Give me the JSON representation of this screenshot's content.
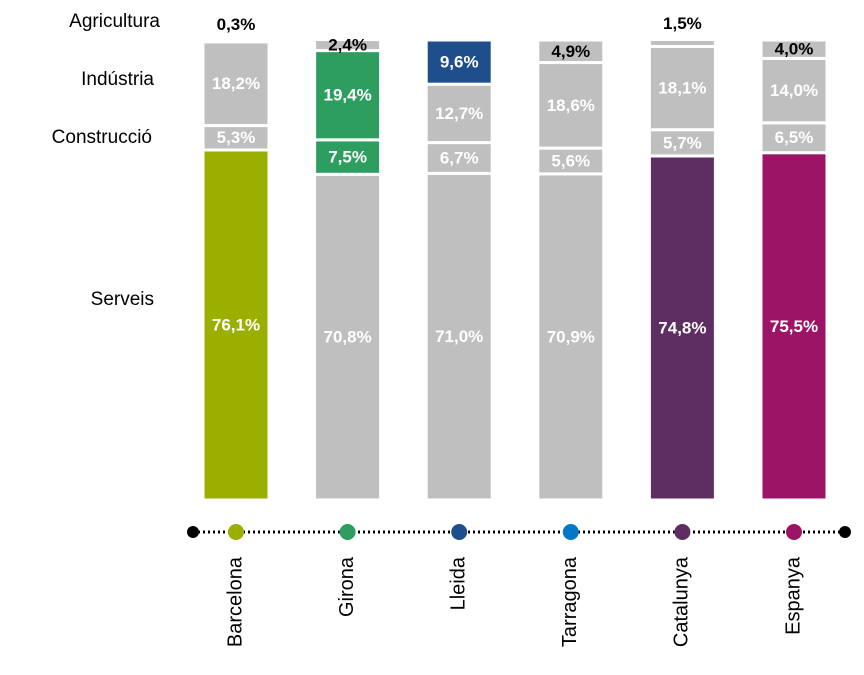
{
  "chart_data": {
    "type": "stacked_bar",
    "categories": [
      "Barcelona",
      "Girona",
      "Lleida",
      "Tarragona",
      "Catalunya",
      "Espanya"
    ],
    "category_colors": [
      "#9aaf00",
      "#2e9e60",
      "#1f4e8c",
      "#0077c8",
      "#5e2d62",
      "#9b1466"
    ],
    "ylim": [
      0,
      100
    ],
    "series": [
      {
        "name": "Serveis",
        "values": [
          76.1,
          70.8,
          71.0,
          70.9,
          74.8,
          75.5
        ],
        "value_labels": [
          "76,1%",
          "70,8%",
          "71,0%",
          "70,9%",
          "74,8%",
          "75,5%"
        ],
        "colors": [
          "#9aaf00",
          "#bfbfbf",
          "#bfbfbf",
          "#bfbfbf",
          "#5e2d62",
          "#9b1466"
        ]
      },
      {
        "name": "Construcció",
        "values": [
          5.3,
          7.5,
          6.7,
          5.6,
          5.7,
          6.5
        ],
        "value_labels": [
          "5,3%",
          "7,5%",
          "6,7%",
          "5,6%",
          "5,7%",
          "6,5%"
        ],
        "colors": [
          "#bfbfbf",
          "#2e9e60",
          "#bfbfbf",
          "#bfbfbf",
          "#bfbfbf",
          "#bfbfbf"
        ]
      },
      {
        "name": "Indústria",
        "values": [
          18.2,
          19.4,
          12.7,
          18.6,
          18.1,
          14.0
        ],
        "value_labels": [
          "18,2%",
          "19,4%",
          "12,7%",
          "18,6%",
          "18,1%",
          "14,0%"
        ],
        "colors": [
          "#bfbfbf",
          "#2e9e60",
          "#bfbfbf",
          "#bfbfbf",
          "#bfbfbf",
          "#bfbfbf"
        ]
      },
      {
        "name": "Agricultura",
        "values": [
          0.3,
          2.4,
          9.6,
          4.9,
          1.5,
          4.0
        ],
        "value_labels": [
          "0,3%",
          "2,4%",
          "9,6%",
          "4,9%",
          "1,5%",
          "4,0%"
        ],
        "colors": [
          "#bfbfbf",
          "#bfbfbf",
          "#1f4e8c",
          "#bfbfbf",
          "#bfbfbf",
          "#bfbfbf"
        ]
      }
    ]
  }
}
